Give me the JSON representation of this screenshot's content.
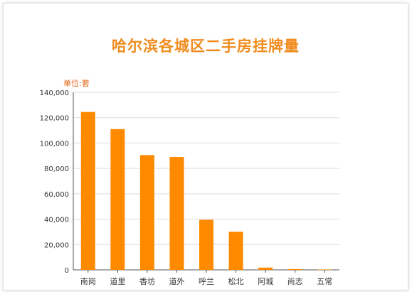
{
  "chart_data": {
    "type": "bar",
    "title": "哈尔滨各城区二手房挂牌量",
    "unit_label": "单位:套",
    "categories": [
      "南岗",
      "道里",
      "香坊",
      "道外",
      "呼兰",
      "松北",
      "阿城",
      "尚志",
      "五常"
    ],
    "values": [
      124500,
      111000,
      90500,
      89000,
      39500,
      30000,
      1800,
      600,
      300
    ],
    "ylim": [
      0,
      140000
    ],
    "yticks": [
      0,
      20000,
      40000,
      60000,
      80000,
      100000,
      120000,
      140000
    ],
    "ytick_labels": [
      "0",
      "20,000",
      "40,000",
      "60,000",
      "80,000",
      "100,000",
      "120,000",
      "140,000"
    ],
    "grid": true,
    "colors": {
      "bar": "#ff8a00",
      "title": "#f08c1e",
      "unit": "#e06010",
      "grid": "#dddddd"
    }
  }
}
